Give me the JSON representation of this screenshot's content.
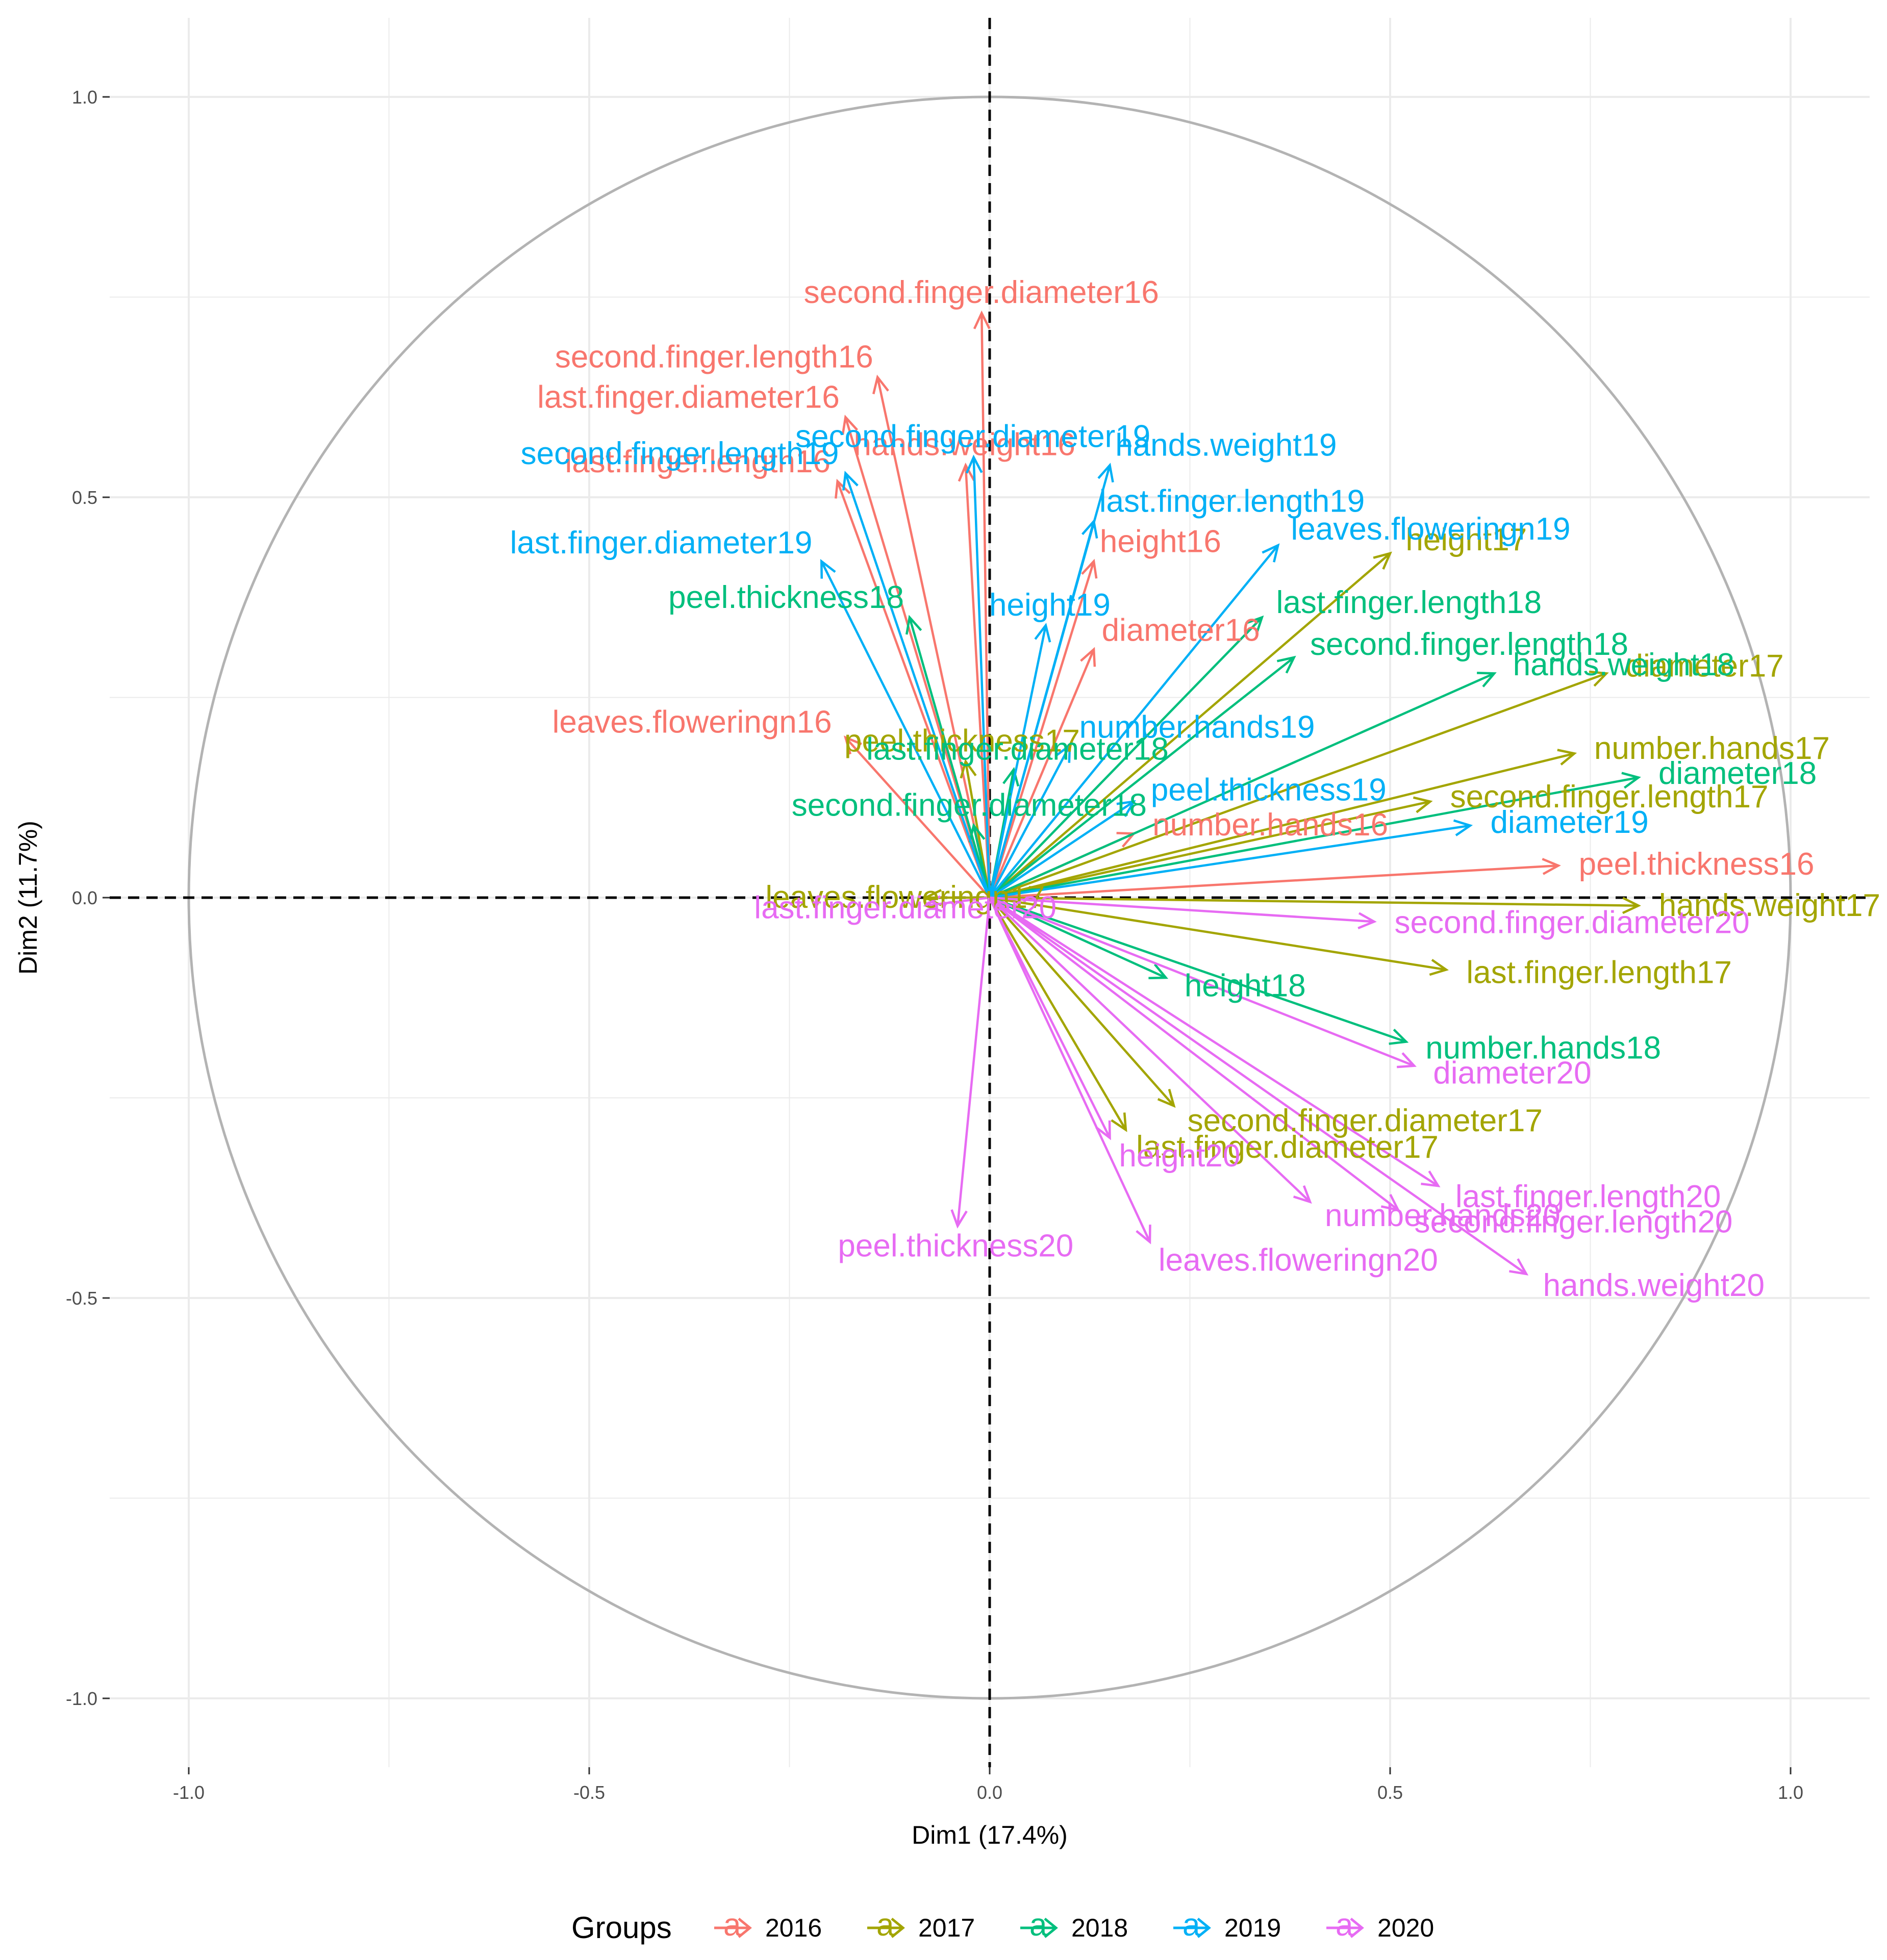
{
  "chart_data": {
    "type": "scatter",
    "subtype": "pca-variable-correlation-circle",
    "title": "",
    "xlabel": "Dim1 (17.4%)",
    "ylabel": "Dim2 (11.7%)",
    "xlim": [
      -1.1,
      1.1
    ],
    "ylim": [
      -1.1,
      1.05
    ],
    "x_ticks": [
      -1.0,
      -0.5,
      0.0,
      0.5,
      1.0
    ],
    "x_tick_labels": [
      "-1.0",
      "-0.5",
      "0.0",
      "0.5",
      "1.0"
    ],
    "y_ticks": [
      -1.0,
      -0.5,
      0.0,
      0.5,
      1.0
    ],
    "y_tick_labels": [
      "-1.0",
      "-0.5",
      "0.0",
      "0.5",
      "1.0"
    ],
    "grid": true,
    "unit_circle": true,
    "legend": {
      "title": "Groups",
      "position": "bottom",
      "entries": [
        {
          "label": "2016",
          "color": "#F8766D"
        },
        {
          "label": "2017",
          "color": "#A3A500"
        },
        {
          "label": "2018",
          "color": "#00BF7D"
        },
        {
          "label": "2019",
          "color": "#00B0F6"
        },
        {
          "label": "2020",
          "color": "#E76BF3"
        }
      ]
    },
    "series": [
      {
        "name": "2016",
        "color": "#F8766D",
        "points": [
          {
            "label": "second.finger.diameter16",
            "x": -0.01,
            "y": 0.73
          },
          {
            "label": "second.finger.length16",
            "x": -0.14,
            "y": 0.65
          },
          {
            "label": "last.finger.diameter16",
            "x": -0.18,
            "y": 0.6
          },
          {
            "label": "last.finger.length16",
            "x": -0.19,
            "y": 0.52
          },
          {
            "label": "hands.weight16",
            "x": -0.03,
            "y": 0.54
          },
          {
            "label": "height16",
            "x": 0.13,
            "y": 0.42
          },
          {
            "label": "diameter16",
            "x": 0.13,
            "y": 0.31
          },
          {
            "label": "leaves.floweringn16",
            "x": -0.18,
            "y": 0.2
          },
          {
            "label": "number.hands16",
            "x": 0.18,
            "y": 0.08
          },
          {
            "label": "peel.thickness16",
            "x": 0.71,
            "y": 0.04
          }
        ]
      },
      {
        "name": "2017",
        "color": "#A3A500",
        "points": [
          {
            "label": "height17",
            "x": 0.5,
            "y": 0.43
          },
          {
            "label": "diameter17",
            "x": 0.77,
            "y": 0.28
          },
          {
            "label": "number.hands17",
            "x": 0.73,
            "y": 0.18
          },
          {
            "label": "second.finger.length17",
            "x": 0.55,
            "y": 0.12
          },
          {
            "label": "peel.thickness17",
            "x": -0.03,
            "y": 0.17
          },
          {
            "label": "leaves.floweringn17",
            "x": -0.08,
            "y": 0.0
          },
          {
            "label": "hands.weight17",
            "x": 0.81,
            "y": -0.01
          },
          {
            "label": "last.finger.length17",
            "x": 0.57,
            "y": -0.09
          },
          {
            "label": "second.finger.diameter17",
            "x": 0.23,
            "y": -0.26
          },
          {
            "label": "last.finger.diameter17",
            "x": 0.17,
            "y": -0.29
          }
        ]
      },
      {
        "name": "2018",
        "color": "#00BF7D",
        "points": [
          {
            "label": "last.finger.length18",
            "x": 0.34,
            "y": 0.35
          },
          {
            "label": "second.finger.length18",
            "x": 0.38,
            "y": 0.3
          },
          {
            "label": "hands.weight18",
            "x": 0.63,
            "y": 0.28
          },
          {
            "label": "peel.thickness18",
            "x": -0.1,
            "y": 0.35
          },
          {
            "label": "last.finger.diameter18",
            "x": 0.03,
            "y": 0.16
          },
          {
            "label": "second.finger.diameter18",
            "x": -0.02,
            "y": 0.09
          },
          {
            "label": "diameter18",
            "x": 0.81,
            "y": 0.15
          },
          {
            "label": "height18",
            "x": 0.22,
            "y": -0.1
          },
          {
            "label": "number.hands18",
            "x": 0.52,
            "y": -0.18
          }
        ]
      },
      {
        "name": "2019",
        "color": "#00B0F6",
        "points": [
          {
            "label": "second.finger.diameter19",
            "x": -0.02,
            "y": 0.55
          },
          {
            "label": "second.finger.length19",
            "x": -0.18,
            "y": 0.53
          },
          {
            "label": "hands.weight19",
            "x": 0.15,
            "y": 0.54
          },
          {
            "label": "leaves.floweringn19",
            "x": 0.36,
            "y": 0.44
          },
          {
            "label": "last.finger.length19",
            "x": 0.13,
            "y": 0.47
          },
          {
            "label": "last.finger.diameter19",
            "x": -0.21,
            "y": 0.42
          },
          {
            "label": "height19",
            "x": 0.07,
            "y": 0.34
          },
          {
            "label": "number.hands19",
            "x": 0.1,
            "y": 0.19
          },
          {
            "label": "peel.thickness19",
            "x": 0.18,
            "y": 0.12
          },
          {
            "label": "diameter19",
            "x": 0.6,
            "y": 0.09
          }
        ]
      },
      {
        "name": "2020",
        "color": "#E76BF3",
        "points": [
          {
            "label": "last.finger.diameter20",
            "x": -0.08,
            "y": -0.01
          },
          {
            "label": "second.finger.diameter20",
            "x": 0.48,
            "y": -0.03
          },
          {
            "label": "diameter20",
            "x": 0.53,
            "y": -0.21
          },
          {
            "label": "last.finger.length20",
            "x": 0.56,
            "y": -0.36
          },
          {
            "label": "second.finger.length20",
            "x": 0.51,
            "y": -0.39
          },
          {
            "label": "hands.weight20",
            "x": 0.67,
            "y": -0.47
          },
          {
            "label": "number.hands20",
            "x": 0.4,
            "y": -0.38
          },
          {
            "label": "leaves.floweringn20",
            "x": 0.2,
            "y": -0.43
          },
          {
            "label": "height20",
            "x": 0.15,
            "y": -0.3
          },
          {
            "label": "peel.thickness20",
            "x": -0.04,
            "y": -0.41
          }
        ]
      }
    ]
  }
}
